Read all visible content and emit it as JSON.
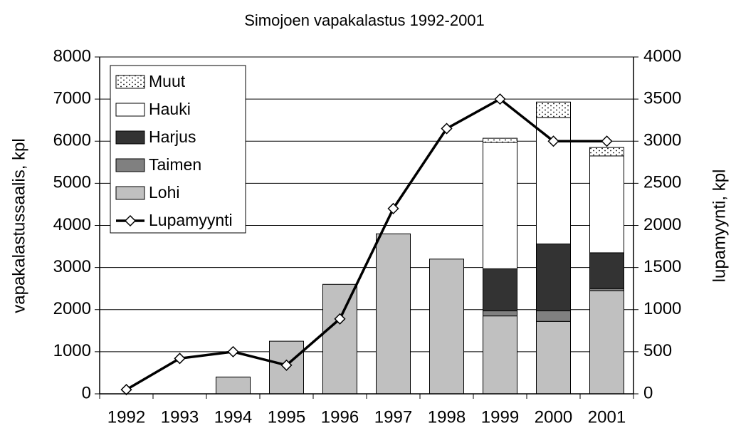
{
  "chart_data": {
    "type": "bar",
    "title": "Simojoen vapakalastus 1992-2001",
    "y_label": "vapakalastussaalis, kpl",
    "y2_label": "lupamyynti, kpl",
    "categories": [
      "1992",
      "1993",
      "1994",
      "1995",
      "1996",
      "1997",
      "1998",
      "1999",
      "2000",
      "2001"
    ],
    "stacked": true,
    "grid": true,
    "legend": "upper left",
    "ylim": [
      0,
      8000
    ],
    "yticks": [
      0,
      1000,
      2000,
      3000,
      4000,
      5000,
      6000,
      7000,
      8000
    ],
    "y2lim": [
      0,
      4000
    ],
    "y2ticks": [
      0,
      500,
      1000,
      1500,
      2000,
      2500,
      3000,
      3500,
      4000
    ],
    "series": [
      {
        "name": "Lohi",
        "color": "#c0c0c0",
        "values": [
          null,
          null,
          400,
          1250,
          2600,
          3800,
          3200,
          1850,
          1720,
          2450
        ]
      },
      {
        "name": "Taimen",
        "color": "#808080",
        "values": [
          null,
          null,
          null,
          null,
          null,
          null,
          null,
          120,
          250,
          50
        ]
      },
      {
        "name": "Harjus",
        "color": "#333333",
        "values": [
          null,
          null,
          null,
          null,
          null,
          null,
          null,
          1000,
          1590,
          850
        ]
      },
      {
        "name": "Hauki",
        "color": "#ffffff",
        "values": [
          null,
          null,
          null,
          null,
          null,
          null,
          null,
          3000,
          3000,
          2300
        ]
      },
      {
        "name": "Muut",
        "color": "#ffffff",
        "pattern": "dots",
        "values": [
          null,
          null,
          null,
          null,
          null,
          null,
          null,
          100,
          370,
          200
        ]
      },
      {
        "name": "Lupamyynti",
        "type": "line",
        "axis": "y2",
        "color": "#000000",
        "marker": "diamond",
        "values": [
          50,
          420,
          500,
          340,
          890,
          2200,
          3150,
          3500,
          3000,
          3000
        ]
      }
    ]
  }
}
